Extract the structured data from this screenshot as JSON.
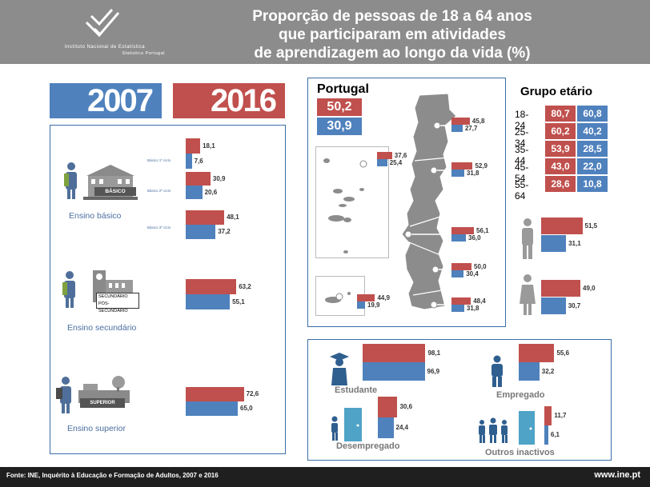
{
  "header": {
    "title_lines": [
      "Proporção de pessoas de 18 a 64 anos",
      "que participaram em atividades",
      "de aprendizagem ao longo da vida (%)"
    ],
    "institute_line1": "Instituto Nacional de Estatística",
    "institute_line2": "Statistics Portugal"
  },
  "years": {
    "y2007": "2007",
    "y2016": "2016"
  },
  "colors": {
    "y2016": "#c0504d",
    "y2007": "#4f81bd",
    "header": "#8c8c8c",
    "panel_border": "#3b6ea8"
  },
  "chart_data": [
    {
      "type": "bar",
      "group": "education",
      "categories": [
        "Básico 1º ciclo",
        "Básico 2º ciclo",
        "Básico 3º ciclo",
        "Ensino secundário",
        "Ensino superior"
      ],
      "series": [
        {
          "name": "2016",
          "values": [
            18.1,
            30.9,
            48.1,
            63.2,
            72.6
          ]
        },
        {
          "name": "2007",
          "values": [
            7.6,
            20.6,
            37.2,
            55.1,
            65.0
          ]
        }
      ],
      "labels": {
        "basic_cycle1": "Básico 1º ciclo",
        "basic_cycle2": "Básico 2º ciclo",
        "basic_cycle3": "Básico 3º ciclo",
        "basic": "Ensino básico",
        "secondary": "Ensino secundário",
        "tertiary": "Ensino superior",
        "sign_basic": "BÁSICO",
        "sign_secondary_1": "SECUNDÁRIO",
        "sign_secondary_2": "PÓS-SECUNDÁRIO",
        "sign_tertiary": "SUPERIOR"
      }
    },
    {
      "type": "bar",
      "group": "regions",
      "categories": [
        "Norte",
        "Centro",
        "Área Metropolitana de Lisboa",
        "Alentejo",
        "Algarve",
        "Região Autónoma dos Açores",
        "Região Autónoma da Madeira"
      ],
      "series": [
        {
          "name": "2016",
          "values": [
            45.8,
            52.9,
            56.1,
            50.0,
            48.4,
            37.6,
            44.9
          ]
        },
        {
          "name": "2007",
          "values": [
            27.7,
            31.8,
            36.0,
            30.4,
            31.8,
            25.4,
            19.9
          ]
        }
      ],
      "title": "Portugal",
      "total_2016": "50,2",
      "total_2007": "30,9"
    },
    {
      "type": "table",
      "group": "age",
      "title": "Grupo etário",
      "rows": [
        {
          "label": "18-24",
          "v2016": "80,7",
          "v2007": "60,8"
        },
        {
          "label": "25-34",
          "v2016": "60,2",
          "v2007": "40,2"
        },
        {
          "label": "35-44",
          "v2016": "53,9",
          "v2007": "28,5"
        },
        {
          "label": "45-54",
          "v2016": "43,0",
          "v2007": "22,0"
        },
        {
          "label": "55-64",
          "v2016": "28,6",
          "v2007": "10,8"
        }
      ]
    },
    {
      "type": "bar",
      "group": "sex",
      "categories": [
        "Homens",
        "Mulheres"
      ],
      "series": [
        {
          "name": "2016",
          "values": [
            51.5,
            49.0
          ]
        },
        {
          "name": "2007",
          "values": [
            31.1,
            30.7
          ]
        }
      ]
    },
    {
      "type": "bar",
      "group": "employment",
      "categories": [
        "Estudante",
        "Empregado",
        "Desempregado",
        "Outros inactivos"
      ],
      "series": [
        {
          "name": "2016",
          "values": [
            98.1,
            55.6,
            30.6,
            11.7
          ]
        },
        {
          "name": "2007",
          "values": [
            96.9,
            32.2,
            24.4,
            6.1
          ]
        }
      ],
      "labels": {
        "student": "Estudante",
        "employed": "Empregado",
        "unemployed": "Desempregado",
        "inactive": "Outros inactivos"
      }
    }
  ],
  "footer": {
    "source": "Fonte: INE, Inquérito à Educação e Formação de Adultos, 2007 e 2016",
    "website": "www.ine.pt"
  }
}
